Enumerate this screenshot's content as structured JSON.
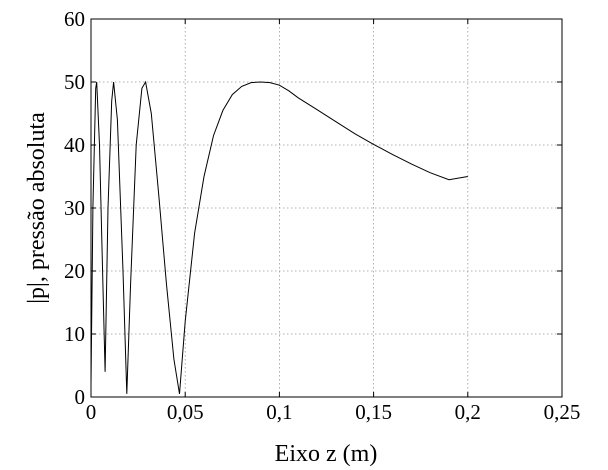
{
  "chart_data": {
    "type": "line",
    "title": "",
    "xlabel": "Eixo z (m)",
    "ylabel": "|p|, pressão absoluta",
    "xlim": [
      0,
      0.25
    ],
    "ylim": [
      0,
      60
    ],
    "grid": true,
    "x_ticks": [
      {
        "value": 0,
        "label": "0"
      },
      {
        "value": 0.05,
        "label": "0,05"
      },
      {
        "value": 0.1,
        "label": "0,1"
      },
      {
        "value": 0.15,
        "label": "0,15"
      },
      {
        "value": 0.2,
        "label": "0,2"
      },
      {
        "value": 0.25,
        "label": "0,25"
      }
    ],
    "y_ticks": [
      {
        "value": 0,
        "label": "0"
      },
      {
        "value": 10,
        "label": "10"
      },
      {
        "value": 20,
        "label": "20"
      },
      {
        "value": 30,
        "label": "30"
      },
      {
        "value": 40,
        "label": "40"
      },
      {
        "value": 50,
        "label": "50"
      },
      {
        "value": 60,
        "label": "60"
      }
    ],
    "series": [
      {
        "color": "#000000",
        "x": [
          0,
          0.001,
          0.0025,
          0.003,
          0.0045,
          0.0065,
          0.0075,
          0.009,
          0.011,
          0.012,
          0.014,
          0.017,
          0.019,
          0.021,
          0.024,
          0.027,
          0.029,
          0.032,
          0.036,
          0.04,
          0.044,
          0.047,
          0.05,
          0.055,
          0.06,
          0.065,
          0.07,
          0.075,
          0.08,
          0.085,
          0.09,
          0.095,
          0.1,
          0.105,
          0.11,
          0.12,
          0.13,
          0.14,
          0.15,
          0.16,
          0.17,
          0.18,
          0.19,
          0.2
        ],
        "y": [
          2,
          30,
          49,
          50,
          40,
          16,
          4,
          30,
          47,
          50,
          44,
          20,
          0.5,
          18,
          40,
          49,
          50,
          45,
          32,
          18,
          6,
          0.5,
          12,
          26,
          35,
          41.5,
          45.5,
          48,
          49.3,
          49.9,
          50,
          49.9,
          49.5,
          48.6,
          47.5,
          45.6,
          43.7,
          41.8,
          40.1,
          38.5,
          37,
          35.6,
          34.5,
          35
        ]
      }
    ]
  }
}
